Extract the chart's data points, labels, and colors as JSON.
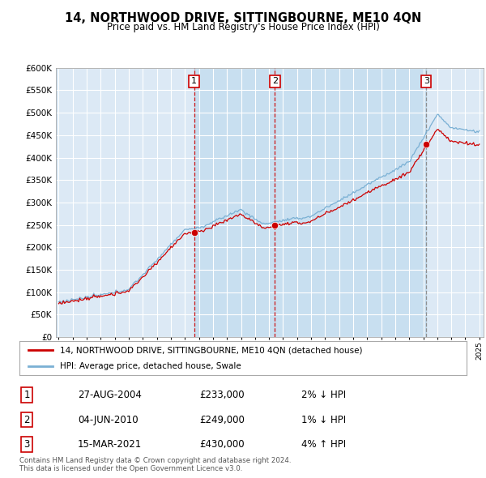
{
  "title": "14, NORTHWOOD DRIVE, SITTINGBOURNE, ME10 4QN",
  "subtitle": "Price paid vs. HM Land Registry's House Price Index (HPI)",
  "plot_bg_color": "#dce9f5",
  "x_start_year": 1995,
  "x_end_year": 2025,
  "y_min": 0,
  "y_max": 600000,
  "y_ticks": [
    0,
    50000,
    100000,
    150000,
    200000,
    250000,
    300000,
    350000,
    400000,
    450000,
    500000,
    550000,
    600000
  ],
  "sale_dates": [
    2004.65,
    2010.42,
    2021.21
  ],
  "sale_prices": [
    233000,
    249000,
    430000
  ],
  "sale_labels": [
    "1",
    "2",
    "3"
  ],
  "footnote": "Contains HM Land Registry data © Crown copyright and database right 2024.\nThis data is licensed under the Open Government Licence v3.0.",
  "legend_entries": [
    "14, NORTHWOOD DRIVE, SITTINGBOURNE, ME10 4QN (detached house)",
    "HPI: Average price, detached house, Swale"
  ],
  "table_rows": [
    [
      "1",
      "27-AUG-2004",
      "£233,000",
      "2% ↓ HPI"
    ],
    [
      "2",
      "04-JUN-2010",
      "£249,000",
      "1% ↓ HPI"
    ],
    [
      "3",
      "15-MAR-2021",
      "£430,000",
      "4% ↑ HPI"
    ]
  ],
  "hpi_line_color": "#7ab0d4",
  "price_line_color": "#cc0000",
  "grid_color": "#ffffff",
  "sale_box_color": "#cc0000",
  "shade_color": "#c8dff0"
}
